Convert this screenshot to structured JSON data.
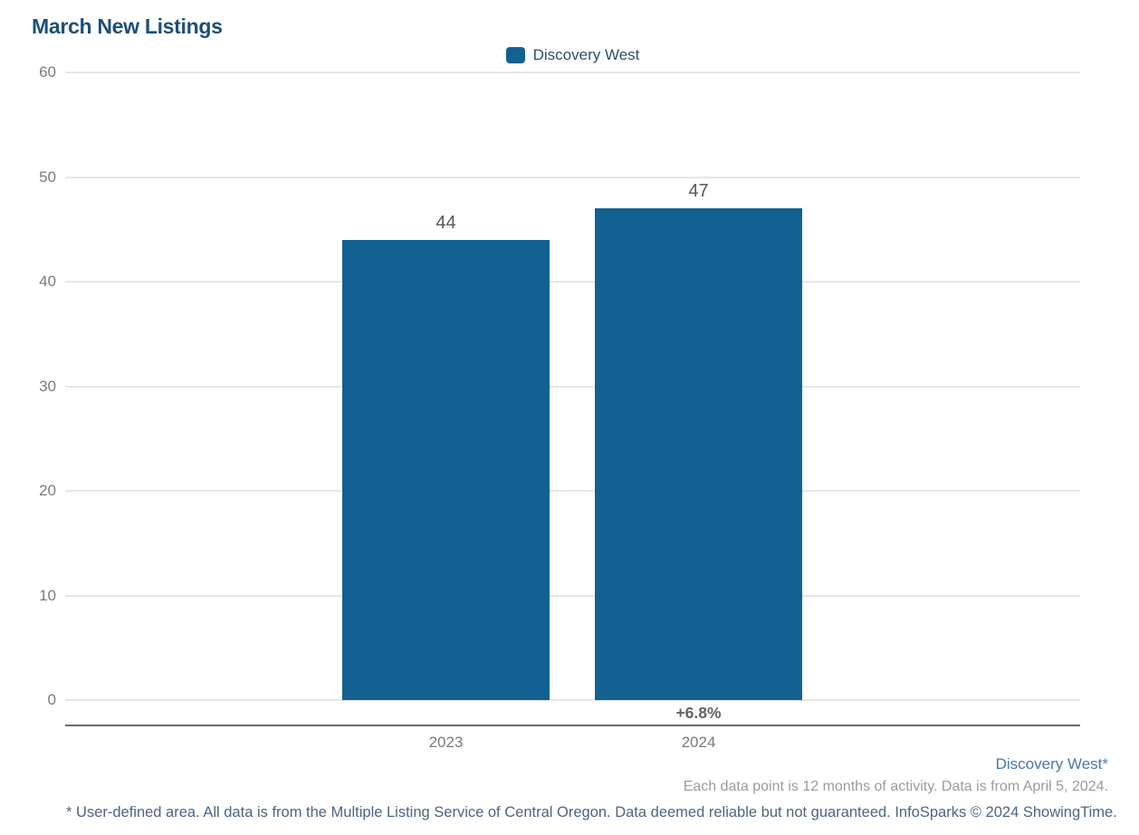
{
  "header": {
    "title": "March New Listings"
  },
  "legend": {
    "items": [
      {
        "label": "Discovery West",
        "color": "#136190"
      }
    ]
  },
  "chart_data": {
    "type": "bar",
    "title": "March New Listings",
    "categories": [
      "2023",
      "2024"
    ],
    "series": [
      {
        "name": "Discovery West",
        "color": "#136190",
        "values": [
          44,
          47
        ]
      }
    ],
    "bar_value_labels": [
      "44",
      "47"
    ],
    "change_labels": [
      "",
      "+6.8%"
    ],
    "yticks": [
      0,
      10,
      20,
      30,
      40,
      50,
      60
    ],
    "ylim": [
      0,
      60
    ],
    "grid": true,
    "legend_position": "top-center",
    "colors": {
      "bar": "#136190",
      "gridline": "#e6e6e6",
      "axis_line": "#6b6b6b",
      "tick_label": "#7a7a7a",
      "value_label": "#58595b",
      "title": "#1d4e79"
    }
  },
  "footer": {
    "series_note": "Discovery West*",
    "data_note": "Each data point is 12 months of activity. Data is from April 5, 2024.",
    "disclaimer": "* User-defined area. All data is from the Multiple Listing Service of Central Oregon. Data deemed reliable but not guaranteed. InfoSparks © 2024 ShowingTime.",
    "colors": {
      "series_note": "#4878ab",
      "data_note": "#9b9b9b",
      "disclaimer": "#4a6584"
    }
  }
}
